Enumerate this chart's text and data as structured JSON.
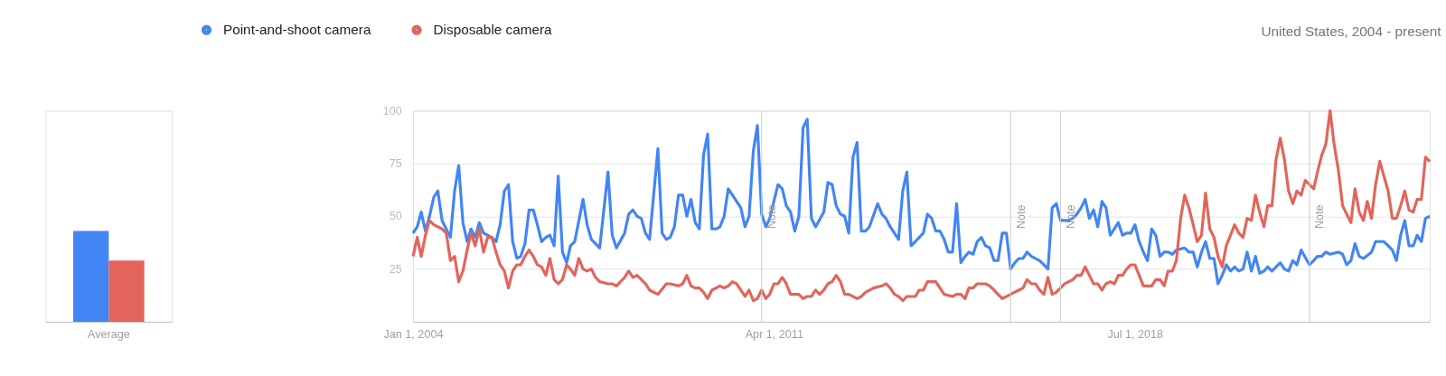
{
  "chart_data": [
    {
      "type": "bar",
      "categories": [
        "Average"
      ],
      "series": [
        {
          "color": "#4285f4",
          "values": [
            43
          ]
        },
        {
          "color": "#e3645a",
          "values": [
            29
          ]
        }
      ],
      "ylim": [
        0,
        100
      ],
      "tick_labels": "x"
    },
    {
      "type": "line",
      "series": [
        {
          "name": "Point-and-shoot camera",
          "color": "#4285f4",
          "x": [
            "2004-01",
            "2004-02",
            "2004-03",
            "2004-04",
            "2004-05",
            "2004-06",
            "2004-07",
            "2004-08",
            "2004-10",
            "2004-11",
            "2004-12",
            "2005-01",
            "2005-02",
            "2005-03",
            "2005-04",
            "2005-05",
            "2005-06",
            "2005-08",
            "2005-09",
            "2005-10",
            "2005-11",
            "2005-12",
            "2006-01",
            "2006-02",
            "2006-03",
            "2006-04",
            "2006-05",
            "2006-06",
            "2006-07",
            "2006-08",
            "2006-09",
            "2006-10",
            "2006-11",
            "2006-12",
            "2007-01",
            "2007-02",
            "2007-03",
            "2007-04",
            "2007-06",
            "2007-07",
            "2007-08",
            "2007-09",
            "2007-10",
            "2007-12",
            "2008-01",
            "2008-02",
            "2008-04",
            "2008-05",
            "2008-06",
            "2008-07",
            "2008-08",
            "2008-09",
            "2008-10",
            "2008-12",
            "2009-01",
            "2009-02",
            "2009-03",
            "2009-04",
            "2009-05",
            "2009-06",
            "2009-07",
            "2009-08",
            "2009-09",
            "2009-10",
            "2009-11",
            "2009-12",
            "2010-01",
            "2010-02",
            "2010-03",
            "2010-04",
            "2010-05",
            "2010-06",
            "2010-08",
            "2010-09",
            "2010-10",
            "2010-11",
            "2010-12",
            "2011-01",
            "2011-02",
            "2011-03",
            "2011-05",
            "2011-06",
            "2011-07",
            "2011-08",
            "2011-09",
            "2011-10",
            "2011-11",
            "2011-12",
            "2012-01",
            "2012-02",
            "2012-04",
            "2012-05",
            "2012-06",
            "2012-07",
            "2012-08",
            "2012-09",
            "2012-10",
            "2012-11",
            "2012-12",
            "2013-01",
            "2013-02",
            "2013-03",
            "2013-05",
            "2013-06",
            "2013-07",
            "2013-08",
            "2013-09",
            "2013-10",
            "2013-11",
            "2013-12",
            "2014-01",
            "2014-02",
            "2014-04",
            "2014-05",
            "2014-06",
            "2014-07",
            "2014-08",
            "2014-09",
            "2014-10",
            "2014-11",
            "2014-12",
            "2015-01",
            "2015-02",
            "2015-03",
            "2015-04",
            "2015-05",
            "2015-06",
            "2015-07",
            "2015-08",
            "2015-09",
            "2015-10",
            "2015-11",
            "2015-12",
            "2016-01",
            "2016-02",
            "2016-03",
            "2016-04",
            "2016-05",
            "2016-06",
            "2016-08",
            "2016-09",
            "2016-10",
            "2016-11",
            "2016-12",
            "2017-01",
            "2017-03",
            "2017-04",
            "2017-05",
            "2017-06",
            "2017-07",
            "2017-08",
            "2017-09",
            "2017-10",
            "2017-11",
            "2017-12",
            "2018-01",
            "2018-03",
            "2018-04",
            "2018-05",
            "2018-06",
            "2018-07",
            "2018-08",
            "2018-09",
            "2018-10",
            "2018-11",
            "2018-12",
            "2019-01",
            "2019-02",
            "2019-03",
            "2019-04",
            "2019-05",
            "2019-07",
            "2019-08",
            "2019-09",
            "2019-10",
            "2019-11",
            "2019-12",
            "2020-01",
            "2020-02",
            "2020-03",
            "2020-04",
            "2020-05",
            "2020-06",
            "2020-07",
            "2020-08",
            "2020-09",
            "2020-10",
            "2020-11",
            "2020-12",
            "2021-01",
            "2021-02",
            "2021-03",
            "2021-04",
            "2021-06",
            "2021-07",
            "2021-08",
            "2021-09",
            "2021-10",
            "2021-11",
            "2022-01",
            "2022-02",
            "2022-03",
            "2022-04",
            "2022-05",
            "2022-06",
            "2022-08",
            "2022-09",
            "2022-10",
            "2022-11",
            "2022-12",
            "2023-01",
            "2023-02",
            "2023-04",
            "2023-05",
            "2023-07",
            "2023-08",
            "2023-09",
            "2023-10",
            "2023-11",
            "2023-12",
            "2024-01",
            "2024-02",
            "2024-03",
            "2024-04",
            "2024-05",
            "2024-06"
          ],
          "values": [
            42,
            45,
            52,
            43,
            50,
            59,
            62,
            48,
            40,
            62,
            74,
            47,
            38,
            44,
            40,
            47,
            42,
            40,
            38,
            46,
            62,
            65,
            38,
            30,
            31,
            37,
            53,
            53,
            46,
            38,
            40,
            41,
            36,
            69,
            33,
            28,
            36,
            38,
            58,
            46,
            39,
            37,
            35,
            71,
            41,
            35,
            42,
            51,
            53,
            50,
            49,
            42,
            39,
            82,
            42,
            39,
            40,
            45,
            60,
            60,
            50,
            58,
            47,
            44,
            79,
            89,
            44,
            44,
            45,
            50,
            63,
            60,
            54,
            45,
            50,
            81,
            93,
            51,
            45,
            49,
            65,
            63,
            55,
            52,
            43,
            50,
            92,
            96,
            49,
            45,
            52,
            66,
            65,
            55,
            51,
            50,
            42,
            78,
            85,
            43,
            43,
            45,
            56,
            51,
            49,
            45,
            42,
            39,
            62,
            71,
            36,
            38,
            42,
            51,
            49,
            43,
            43,
            39,
            33,
            33,
            56,
            28,
            31,
            33,
            32,
            38,
            40,
            36,
            35,
            29,
            29,
            42,
            42,
            25,
            28,
            30,
            30,
            33,
            31,
            29,
            27,
            25,
            54,
            56,
            48,
            48,
            49,
            51,
            54,
            58,
            49,
            53,
            45,
            57,
            54,
            41,
            47,
            41,
            42,
            42,
            46,
            38,
            33,
            29,
            44,
            41,
            31,
            33,
            33,
            32,
            34,
            35,
            33,
            33,
            26,
            33,
            38,
            30,
            30,
            18,
            22,
            27,
            24,
            26,
            24,
            25,
            33,
            24,
            31,
            23,
            24,
            26,
            24,
            28,
            25,
            24,
            29,
            27,
            34,
            27,
            29,
            31,
            31,
            33,
            32,
            33,
            32,
            27,
            29,
            37,
            31,
            30,
            33,
            38,
            38,
            36,
            34,
            29,
            41,
            48,
            36,
            36,
            41,
            38,
            49,
            50
          ]
        },
        {
          "name": "Disposable camera",
          "color": "#e3645a",
          "x": [
            "2004-01",
            "2004-02",
            "2004-03",
            "2004-04",
            "2004-05",
            "2004-06",
            "2004-08",
            "2004-09",
            "2004-10",
            "2004-11",
            "2004-12",
            "2005-01",
            "2005-02",
            "2005-03",
            "2005-04",
            "2005-05",
            "2005-06",
            "2005-07",
            "2005-08",
            "2005-09",
            "2005-10",
            "2005-11",
            "2005-12",
            "2006-01",
            "2006-02",
            "2006-03",
            "2006-04",
            "2006-05",
            "2006-06",
            "2006-07",
            "2006-08",
            "2006-09",
            "2006-10",
            "2006-11",
            "2006-12",
            "2007-01",
            "2007-02",
            "2007-03",
            "2007-04",
            "2007-05",
            "2007-06",
            "2007-07",
            "2007-08",
            "2007-09",
            "2007-10",
            "2007-12",
            "2008-01",
            "2008-02",
            "2008-04",
            "2008-05",
            "2008-06",
            "2008-07",
            "2008-09",
            "2008-10",
            "2008-12",
            "2009-02",
            "2009-03",
            "2009-05",
            "2009-06",
            "2009-07",
            "2009-08",
            "2009-09",
            "2009-10",
            "2009-11",
            "2009-12",
            "2010-01",
            "2010-02",
            "2010-03",
            "2010-04",
            "2010-05",
            "2010-06",
            "2010-07",
            "2010-09",
            "2010-10",
            "2010-11",
            "2010-12",
            "2011-01",
            "2011-02",
            "2011-03",
            "2011-04",
            "2011-05",
            "2011-06",
            "2011-07",
            "2011-08",
            "2011-10",
            "2011-11",
            "2011-12",
            "2012-01",
            "2012-02",
            "2012-03",
            "2012-04",
            "2012-05",
            "2012-06",
            "2012-07",
            "2012-08",
            "2012-09",
            "2012-10",
            "2012-12",
            "2013-01",
            "2013-02",
            "2013-04",
            "2013-06",
            "2013-07",
            "2013-08",
            "2013-09",
            "2013-10",
            "2013-11",
            "2013-12",
            "2014-02",
            "2014-03",
            "2014-04",
            "2014-05",
            "2014-07",
            "2014-08",
            "2014-09",
            "2014-11",
            "2014-12",
            "2015-01",
            "2015-02",
            "2015-03",
            "2015-04",
            "2015-05",
            "2015-06",
            "2015-07",
            "2015-08",
            "2015-09",
            "2015-10",
            "2015-11",
            "2016-01",
            "2016-03",
            "2016-04",
            "2016-05",
            "2016-06",
            "2016-07",
            "2016-08",
            "2016-09",
            "2016-10",
            "2016-11",
            "2016-12",
            "2017-01",
            "2017-02",
            "2017-04",
            "2017-05",
            "2017-06",
            "2017-07",
            "2017-08",
            "2017-09",
            "2017-10",
            "2017-11",
            "2017-12",
            "2018-01",
            "2018-02",
            "2018-03",
            "2018-04",
            "2018-05",
            "2018-06",
            "2018-07",
            "2018-08",
            "2018-09",
            "2018-10",
            "2018-11",
            "2018-12",
            "2019-01",
            "2019-02",
            "2019-03",
            "2019-04",
            "2019-05",
            "2019-06",
            "2019-07",
            "2019-08",
            "2019-09",
            "2019-10",
            "2019-11",
            "2019-12",
            "2020-01",
            "2020-02",
            "2020-03",
            "2020-04",
            "2020-05",
            "2020-06",
            "2020-07",
            "2020-08",
            "2020-09",
            "2020-10",
            "2020-11",
            "2020-12",
            "2021-01",
            "2021-02",
            "2021-03",
            "2021-04",
            "2021-05",
            "2021-06",
            "2021-07",
            "2021-08",
            "2021-09",
            "2021-10",
            "2021-11",
            "2021-12",
            "2022-01",
            "2022-02",
            "2022-03",
            "2022-04",
            "2022-05",
            "2022-06",
            "2022-07",
            "2022-08",
            "2022-09",
            "2022-10",
            "2022-11",
            "2022-12",
            "2023-01",
            "2023-02",
            "2023-03",
            "2023-04",
            "2023-05",
            "2023-06",
            "2023-07",
            "2023-08",
            "2023-09",
            "2023-10",
            "2023-11",
            "2023-12",
            "2024-01",
            "2024-02",
            "2024-03",
            "2024-04",
            "2024-05",
            "2024-06"
          ],
          "values": [
            31,
            40,
            31,
            41,
            48,
            46,
            44,
            42,
            29,
            31,
            19,
            24,
            34,
            42,
            36,
            44,
            33,
            40,
            40,
            33,
            27,
            24,
            16,
            24,
            27,
            27,
            31,
            34,
            31,
            27,
            26,
            22,
            30,
            20,
            18,
            20,
            27,
            25,
            22,
            30,
            25,
            24,
            25,
            21,
            19,
            18,
            18,
            17,
            21,
            24,
            21,
            22,
            18,
            15,
            13,
            18,
            18,
            17,
            18,
            22,
            17,
            16,
            16,
            14,
            11,
            15,
            16,
            17,
            16,
            17,
            19,
            18,
            12,
            15,
            10,
            11,
            15,
            11,
            13,
            18,
            18,
            21,
            18,
            13,
            13,
            11,
            12,
            12,
            15,
            13,
            15,
            18,
            19,
            22,
            19,
            13,
            13,
            11,
            12,
            14,
            16,
            17,
            18,
            16,
            13,
            12,
            10,
            12,
            12,
            15,
            15,
            19,
            19,
            16,
            13,
            12,
            13,
            13,
            11,
            16,
            16,
            18,
            18,
            18,
            17,
            15,
            13,
            11,
            13,
            15,
            16,
            20,
            18,
            18,
            15,
            13,
            21,
            13,
            14,
            16,
            18,
            20,
            22,
            22,
            26,
            22,
            18,
            18,
            15,
            18,
            19,
            18,
            22,
            22,
            25,
            27,
            27,
            22,
            17,
            17,
            17,
            20,
            20,
            17,
            24,
            24,
            29,
            49,
            60,
            54,
            46,
            38,
            41,
            61,
            44,
            40,
            31,
            26,
            36,
            41,
            46,
            42,
            40,
            49,
            48,
            60,
            52,
            45,
            55,
            55,
            77,
            87,
            77,
            62,
            56,
            62,
            60,
            67,
            65,
            63,
            71,
            79,
            84,
            100,
            84,
            72,
            55,
            51,
            47,
            63,
            52,
            48,
            57,
            49,
            65,
            76,
            69,
            62,
            49,
            49,
            55,
            62,
            53,
            52,
            58,
            58,
            78,
            76
          ]
        }
      ],
      "xlim": [
        "2004-01",
        "2024-06"
      ],
      "xticks": [
        {
          "value": "2004-01",
          "label": "Jan 1, 2004"
        },
        {
          "value": "2011-04",
          "label": "Apr 1, 2011"
        },
        {
          "value": "2018-07",
          "label": "Jul 1, 2018"
        }
      ],
      "ylim": [
        0,
        100
      ],
      "yticks": [
        25,
        50,
        75,
        100
      ],
      "grid": "y",
      "legend": "top left",
      "ref_lines": [
        {
          "axis": "x",
          "value": "2011-01",
          "label": "Note"
        },
        {
          "axis": "x",
          "value": "2016-01",
          "label": "Note"
        },
        {
          "axis": "x",
          "value": "2017-01",
          "label": "Note"
        },
        {
          "axis": "x",
          "value": "2022-01",
          "label": "Note"
        }
      ],
      "annotations": [
        "United States, 2004 - present"
      ]
    }
  ]
}
